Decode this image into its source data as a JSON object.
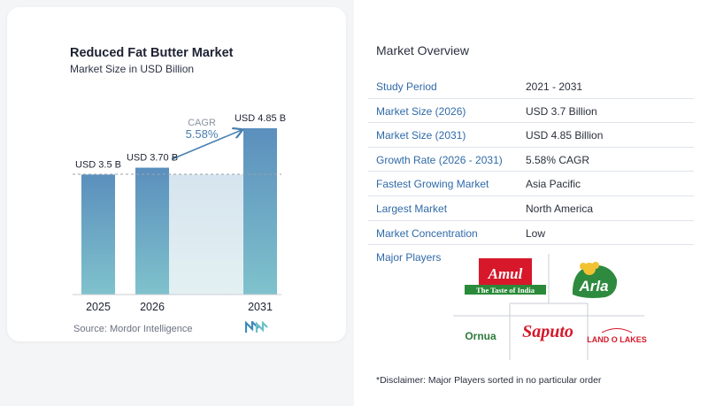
{
  "chart_data": {
    "type": "bar",
    "title": "Reduced Fat Butter Market",
    "subtitle": "Market Size in USD Billion",
    "categories": [
      "2025",
      "2026",
      "2031"
    ],
    "values": [
      3.5,
      3.7,
      4.85
    ],
    "data_labels": [
      "USD 3.5 B",
      "USD 3.70 B",
      "USD 4.85 B"
    ],
    "annotation": {
      "label": "CAGR",
      "value": "5.58%"
    },
    "colors": {
      "bar_top": "#5b8fbd",
      "bar_bottom": "#7fc2cc",
      "band": "#dbe8f1",
      "accent": "#4a7fb0"
    }
  },
  "source": "Source:  Mordor Intelligence",
  "overview": {
    "title": "Market Overview",
    "rows": [
      {
        "key": "Study Period",
        "value": "2021 - 2031"
      },
      {
        "key": "Market Size (2026)",
        "value": "USD 3.7 Billion"
      },
      {
        "key": "Market Size (2031)",
        "value": "USD 4.85 Billion"
      },
      {
        "key": "Growth Rate (2026 - 2031)",
        "value": "5.58% CAGR"
      },
      {
        "key": "Fastest Growing Market",
        "value": "Asia Pacific"
      },
      {
        "key": "Largest Market",
        "value": "North America"
      },
      {
        "key": "Market Concentration",
        "value": "Low"
      }
    ]
  },
  "major_players": {
    "label": "Major Players",
    "logos": [
      {
        "name": "Amul",
        "tagline": "The Taste of India"
      },
      {
        "name": "Arla"
      },
      {
        "name": "Ornua"
      },
      {
        "name": "Saputo"
      },
      {
        "name": "LAND O LAKES"
      }
    ]
  },
  "disclaimer": "*Disclaimer: Major Players sorted in no particular order"
}
